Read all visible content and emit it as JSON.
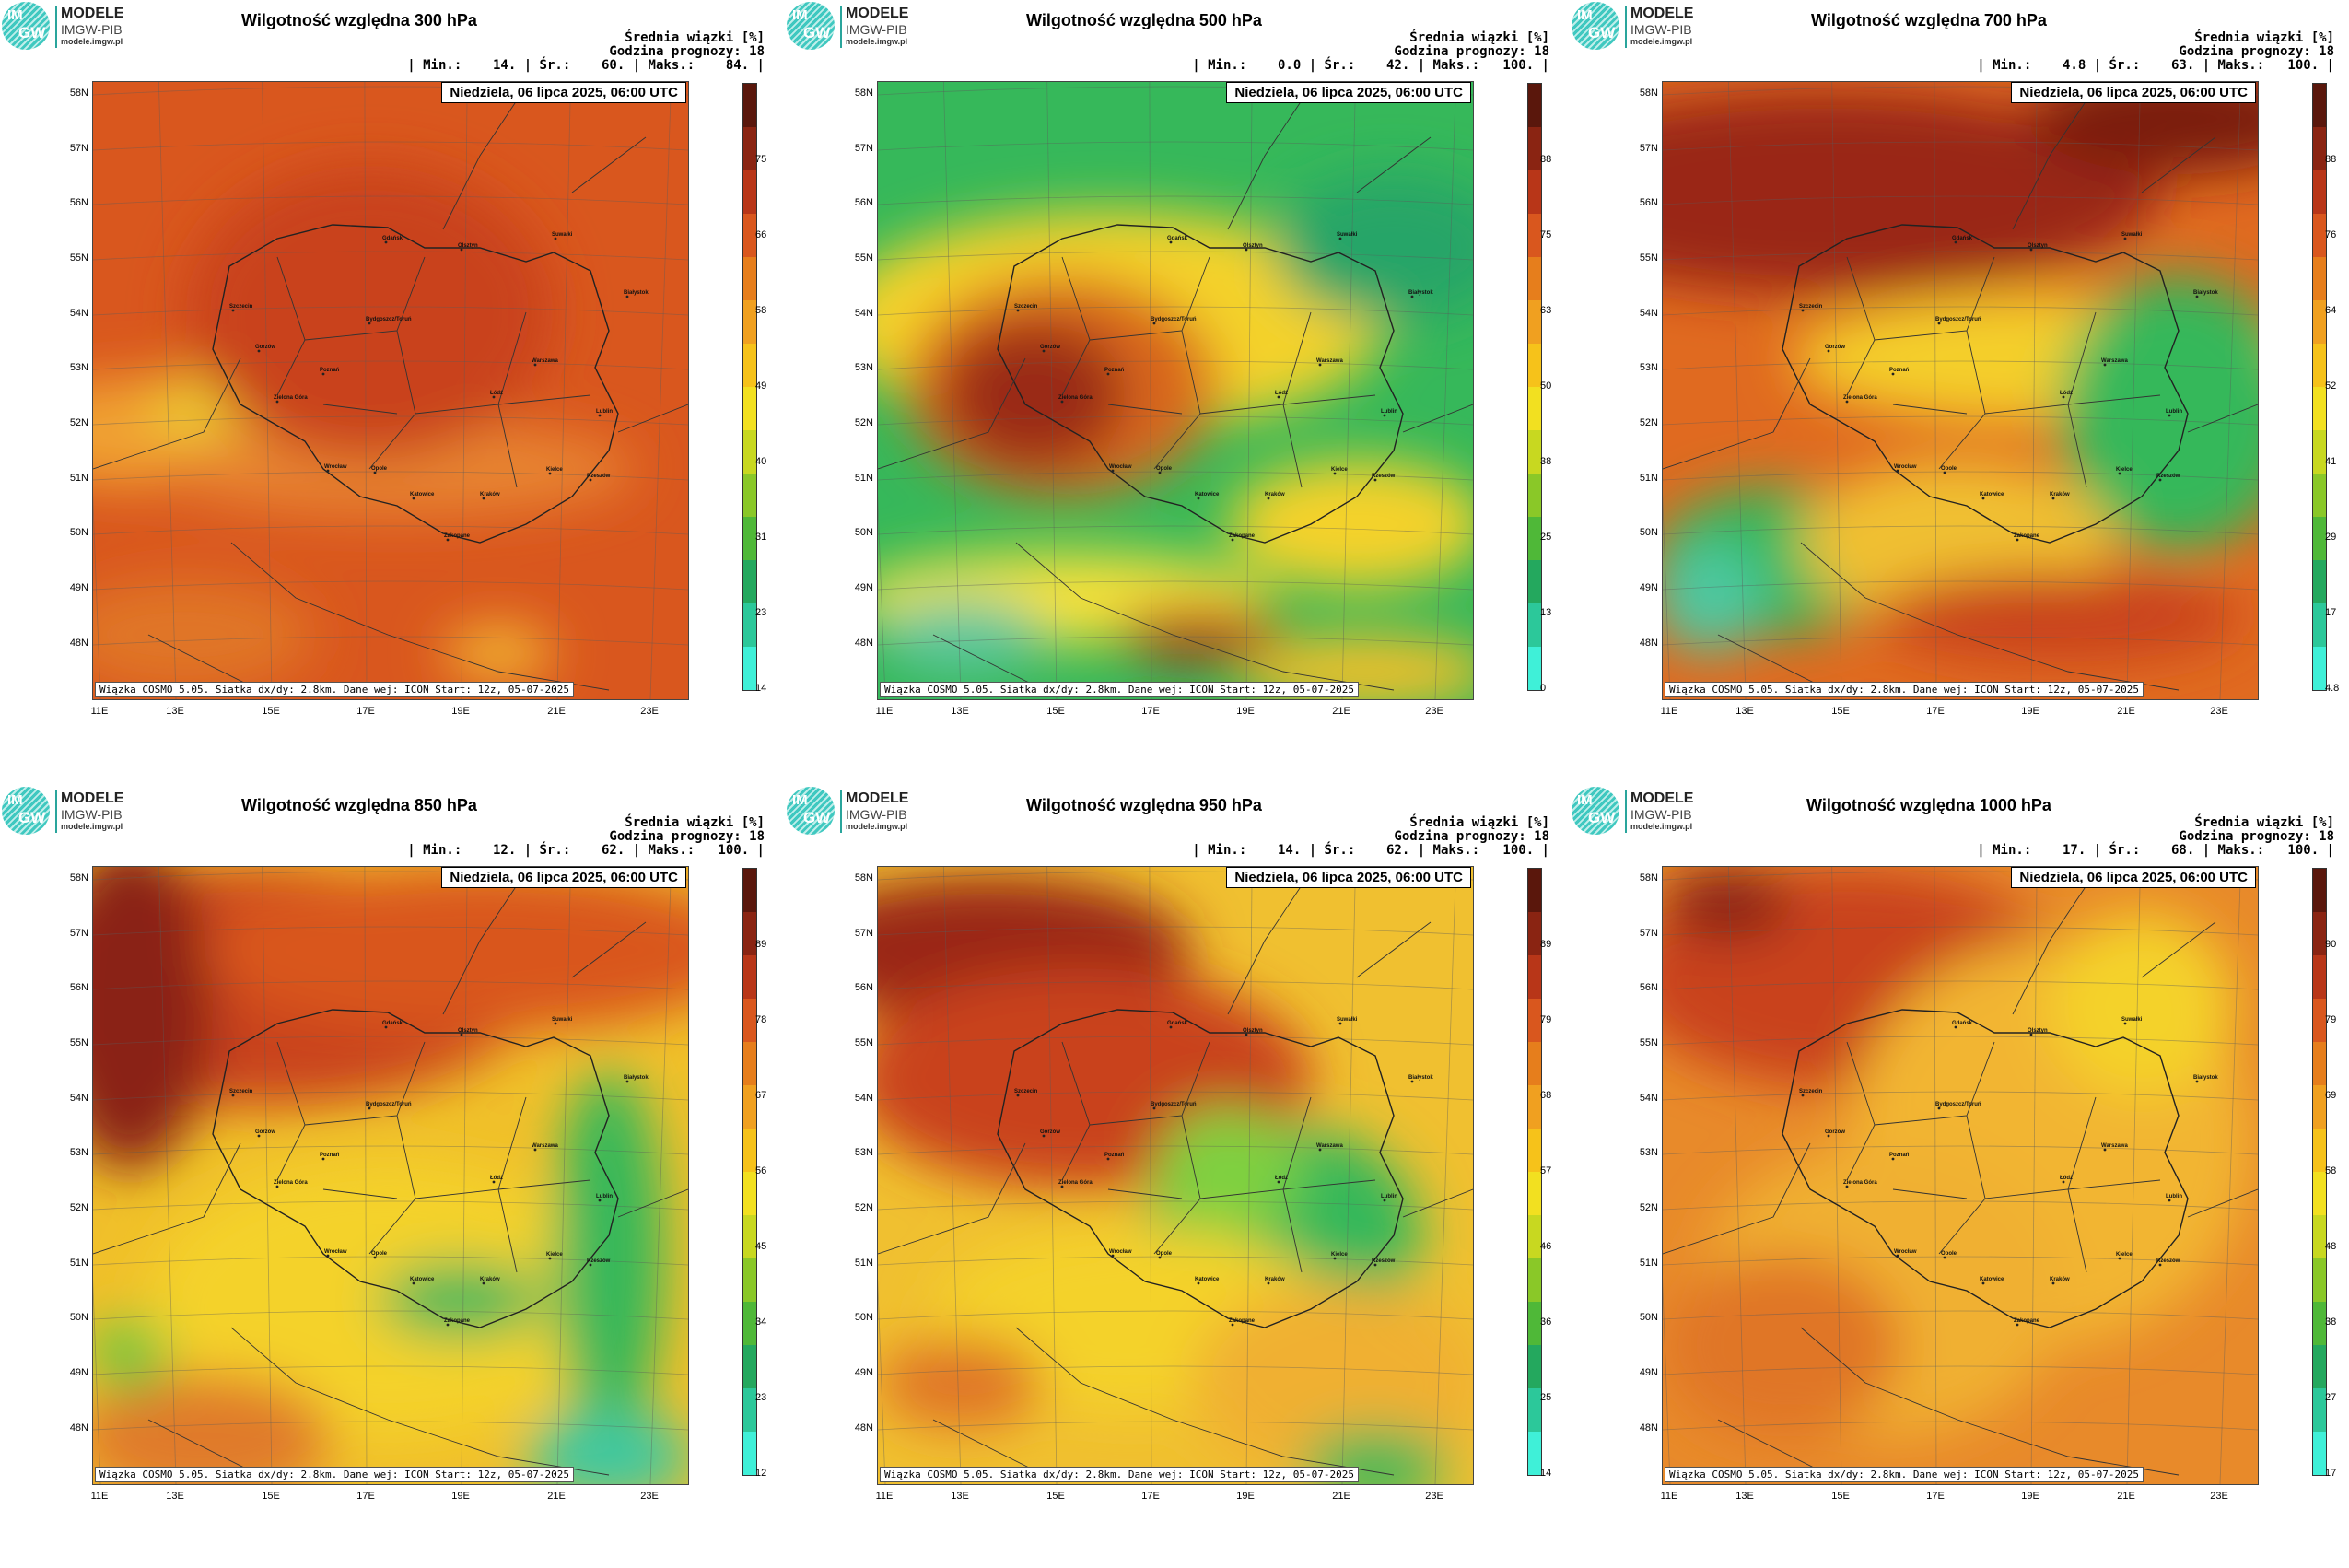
{
  "logo": {
    "im": "IM",
    "gw": "GW",
    "line1": "MODELE",
    "line2": "IMGW-PIB",
    "line3": "modele.imgw.pl"
  },
  "common": {
    "label_line1": "Średnia wiązki [%]",
    "label_line2": "Godzina prognozy: 18",
    "date": "Niedziela, 06 lipca 2025, 06:00 UTC",
    "footer": "Wiązka COSMO 5.05. Siatka dx/dy: 2.8km. Dane wej: ICON Start: 12z, 05-07-2025",
    "lat_labels": [
      "58N",
      "57N",
      "56N",
      "55N",
      "54N",
      "53N",
      "52N",
      "51N",
      "50N",
      "49N",
      "48N"
    ],
    "lon_labels": [
      "11E",
      "13E",
      "15E",
      "17E",
      "19E",
      "21E",
      "23E"
    ],
    "cities": [
      "Gdańsk",
      "Olsztyn",
      "Suwałki",
      "Szczecin",
      "Bydgoszcz/Toruń",
      "Białystok",
      "Gorzów",
      "Poznań",
      "Warszawa",
      "Zielona Góra",
      "Łódź",
      "Lublin",
      "Wrocław",
      "Kielce",
      "Opole",
      "Rzeszów",
      "Katowice",
      "Kraków",
      "Zakopane"
    ]
  },
  "panels": [
    {
      "title": "Wilgotność względna 300 hPa",
      "stats": "| Min.:    14. | Śr.:    60. | Maks.:    84. |",
      "ticks": [
        "75",
        "66",
        "58",
        "49",
        "40",
        "31",
        "23",
        "14"
      ],
      "cb_max_label": "",
      "palette": "dry300"
    },
    {
      "title": "Wilgotność względna 500 hPa",
      "stats": "| Min.:    0.0 | Śr.:    42. | Maks.:   100. |",
      "ticks": [
        "88",
        "75",
        "63",
        "50",
        "38",
        "25",
        "13",
        "0"
      ],
      "palette": "mix500"
    },
    {
      "title": "Wilgotność względna 700 hPa",
      "stats": "| Min.:    4.8 | Śr.:    63. | Maks.:   100. |",
      "ticks": [
        "88",
        "76",
        "64",
        "52",
        "41",
        "29",
        "17",
        "4.8"
      ],
      "palette": "mix700"
    },
    {
      "title": "Wilgotność względna 850 hPa",
      "stats": "| Min.:    12. | Śr.:    62. | Maks.:   100. |",
      "ticks": [
        "89",
        "78",
        "67",
        "56",
        "45",
        "34",
        "23",
        "12"
      ],
      "palette": "mix850"
    },
    {
      "title": "Wilgotność względna 950 hPa",
      "stats": "| Min.:    14. | Śr.:    62. | Maks.:   100. |",
      "ticks": [
        "89",
        "79",
        "68",
        "57",
        "46",
        "36",
        "25",
        "14"
      ],
      "palette": "mix950"
    },
    {
      "title": "Wilgotność względna 1000 hPa",
      "stats": "| Min.:    17. | Śr.:    68. | Maks.:   100. |",
      "ticks": [
        "90",
        "79",
        "69",
        "58",
        "48",
        "38",
        "27",
        "17"
      ],
      "palette": "mix1000"
    }
  ]
}
